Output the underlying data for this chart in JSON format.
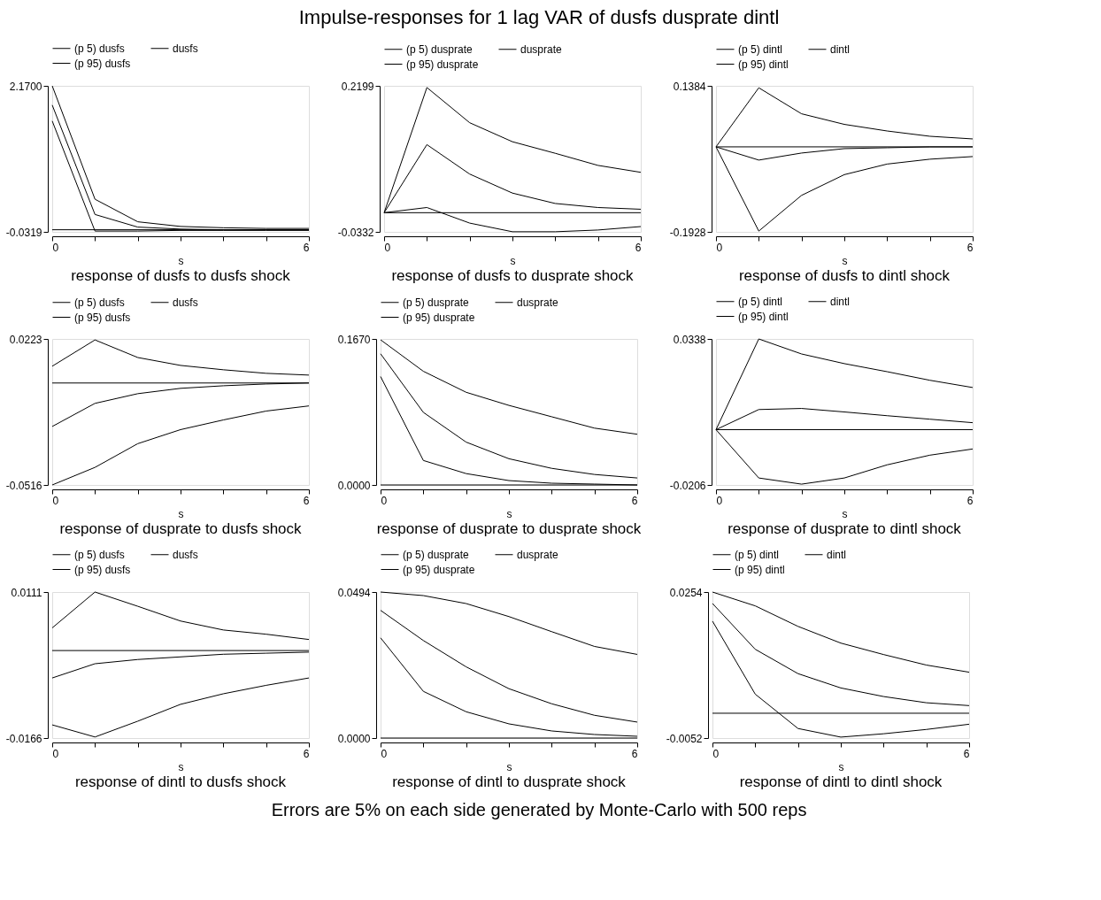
{
  "chart_data": [
    {
      "type": "other",
      "title": "Impulse-responses for 1 lag VAR of dusfs dusprate dintl"
    },
    {
      "type": "line",
      "title": "response of dusfs to dusfs shock",
      "xlabel": "s",
      "x": [
        0,
        1,
        2,
        3,
        4,
        5,
        6
      ],
      "xlim": [
        0,
        6
      ],
      "xticks": [
        0,
        {
          "value": 1,
          "label": null
        },
        {
          "value": 2,
          "label": null
        },
        {
          "value": 3,
          "label": null
        },
        {
          "value": 4,
          "label": null
        },
        {
          "value": 5,
          "label": null
        },
        6
      ],
      "ylim": [
        -0.0319,
        2.17
      ],
      "yticks": [
        {
          "value": -0.0319,
          "label": "-0.0319"
        },
        {
          "value": 2.17,
          "label": "2.1700"
        }
      ],
      "grid": false,
      "legend": "top",
      "ref_lines": [
        {
          "axis": "y",
          "value": 0
        }
      ],
      "series": [
        {
          "name": "(p 5) dusfs",
          "color": "#000000",
          "values": [
            1.64,
            -0.02,
            -0.02,
            -0.01,
            -0.01,
            -0.01,
            -0.01
          ]
        },
        {
          "name": "dusfs",
          "color": "#000000",
          "values": [
            1.88,
            0.23,
            0.04,
            0.01,
            0,
            0,
            0
          ]
        },
        {
          "name": "(p 95) dusfs",
          "color": "#000000",
          "values": [
            2.17,
            0.46,
            0.12,
            0.05,
            0.03,
            0.02,
            0.02
          ]
        }
      ]
    },
    {
      "type": "line",
      "title": "response of dusfs to dusprate shock",
      "xlabel": "s",
      "x": [
        0,
        1,
        2,
        3,
        4,
        5,
        6
      ],
      "xlim": [
        0,
        6
      ],
      "xticks": [
        0,
        {
          "value": 1,
          "label": null
        },
        {
          "value": 2,
          "label": null
        },
        {
          "value": 3,
          "label": null
        },
        {
          "value": 4,
          "label": null
        },
        {
          "value": 5,
          "label": null
        },
        6
      ],
      "ylim": [
        -0.0332,
        0.2199
      ],
      "yticks": [
        {
          "value": -0.0332,
          "label": "-0.0332"
        },
        {
          "value": 0.2199,
          "label": "0.2199"
        }
      ],
      "grid": false,
      "legend": "top",
      "ref_lines": [
        {
          "axis": "y",
          "value": 0
        }
      ],
      "series": [
        {
          "name": "(p 5) dusprate",
          "color": "#000000",
          "values": [
            0,
            0.009,
            -0.018,
            -0.033,
            -0.033,
            -0.03,
            -0.024
          ]
        },
        {
          "name": "dusprate",
          "color": "#000000",
          "values": [
            0,
            0.118,
            0.067,
            0.034,
            0.016,
            0.009,
            0.006
          ]
        },
        {
          "name": "(p 95) dusprate",
          "color": "#000000",
          "values": [
            0,
            0.217,
            0.156,
            0.123,
            0.103,
            0.082,
            0.07
          ]
        }
      ]
    },
    {
      "type": "line",
      "title": "response of dusfs to dintl shock",
      "xlabel": "s",
      "x": [
        0,
        1,
        2,
        3,
        4,
        5,
        6
      ],
      "xlim": [
        0,
        6
      ],
      "xticks": [
        0,
        {
          "value": 1,
          "label": null
        },
        {
          "value": 2,
          "label": null
        },
        {
          "value": 3,
          "label": null
        },
        {
          "value": 4,
          "label": null
        },
        {
          "value": 5,
          "label": null
        },
        6
      ],
      "ylim": [
        -0.1928,
        0.1384
      ],
      "yticks": [
        {
          "value": -0.1928,
          "label": "-0.1928"
        },
        {
          "value": 0.1384,
          "label": "0.1384"
        }
      ],
      "grid": false,
      "legend": "top",
      "ref_lines": [
        {
          "axis": "y",
          "value": 0
        }
      ],
      "series": [
        {
          "name": "(p 5) dintl",
          "color": "#000000",
          "values": [
            0,
            -0.191,
            -0.11,
            -0.063,
            -0.039,
            -0.028,
            -0.022
          ]
        },
        {
          "name": "dintl",
          "color": "#000000",
          "values": [
            0,
            -0.03,
            -0.014,
            -0.004,
            -0.002,
            0,
            0
          ]
        },
        {
          "name": "(p 95) dintl",
          "color": "#000000",
          "values": [
            0,
            0.134,
            0.075,
            0.051,
            0.036,
            0.024,
            0.018
          ]
        }
      ]
    },
    {
      "type": "line",
      "title": "response of dusprate to dusfs shock",
      "xlabel": "s",
      "x": [
        0,
        1,
        2,
        3,
        4,
        5,
        6
      ],
      "xlim": [
        0,
        6
      ],
      "xticks": [
        0,
        {
          "value": 1,
          "label": null
        },
        {
          "value": 2,
          "label": null
        },
        {
          "value": 3,
          "label": null
        },
        {
          "value": 4,
          "label": null
        },
        {
          "value": 5,
          "label": null
        },
        6
      ],
      "ylim": [
        -0.0516,
        0.0223
      ],
      "yticks": [
        {
          "value": -0.0516,
          "label": "-0.0516"
        },
        {
          "value": 0.0223,
          "label": "0.0223"
        }
      ],
      "grid": false,
      "legend": "top",
      "ref_lines": [
        {
          "axis": "y",
          "value": 0
        }
      ],
      "series": [
        {
          "name": "(p 5) dusfs",
          "color": "#000000",
          "values": [
            -0.0516,
            -0.0427,
            -0.0307,
            -0.0236,
            -0.0187,
            -0.0142,
            -0.0116
          ]
        },
        {
          "name": "dusfs",
          "color": "#000000",
          "values": [
            -0.022,
            -0.0103,
            -0.0054,
            -0.0027,
            -0.0014,
            -0.0005,
            0
          ]
        },
        {
          "name": "(p 95) dusfs",
          "color": "#000000",
          "values": [
            0.0085,
            0.0218,
            0.0129,
            0.0089,
            0.0067,
            0.0049,
            0.004
          ]
        }
      ]
    },
    {
      "type": "line",
      "title": "response of dusprate to dusprate shock",
      "xlabel": "s",
      "x": [
        0,
        1,
        2,
        3,
        4,
        5,
        6
      ],
      "xlim": [
        0,
        6
      ],
      "xticks": [
        0,
        {
          "value": 1,
          "label": null
        },
        {
          "value": 2,
          "label": null
        },
        {
          "value": 3,
          "label": null
        },
        {
          "value": 4,
          "label": null
        },
        {
          "value": 5,
          "label": null
        },
        6
      ],
      "ylim": [
        0,
        0.167
      ],
      "yticks": [
        {
          "value": 0,
          "label": "0.0000"
        },
        {
          "value": 0.167,
          "label": "0.1670"
        }
      ],
      "grid": false,
      "legend": "top",
      "ref_lines": [
        {
          "axis": "y",
          "value": 0
        }
      ],
      "series": [
        {
          "name": "(p 5) dusprate",
          "color": "#000000",
          "values": [
            0.124,
            0.028,
            0.013,
            0.005,
            0.002,
            0.001,
            0
          ]
        },
        {
          "name": "dusprate",
          "color": "#000000",
          "values": [
            0.15,
            0.083,
            0.049,
            0.03,
            0.019,
            0.012,
            0.008
          ]
        },
        {
          "name": "(p 95) dusprate",
          "color": "#000000",
          "values": [
            0.166,
            0.13,
            0.106,
            0.091,
            0.078,
            0.065,
            0.058
          ]
        }
      ]
    },
    {
      "type": "line",
      "title": "response of dusprate to dintl shock",
      "xlabel": "s",
      "x": [
        0,
        1,
        2,
        3,
        4,
        5,
        6
      ],
      "xlim": [
        0,
        6
      ],
      "xticks": [
        0,
        {
          "value": 1,
          "label": null
        },
        {
          "value": 2,
          "label": null
        },
        {
          "value": 3,
          "label": null
        },
        {
          "value": 4,
          "label": null
        },
        {
          "value": 5,
          "label": null
        },
        6
      ],
      "ylim": [
        -0.0206,
        0.0338
      ],
      "yticks": [
        {
          "value": -0.0206,
          "label": "-0.0206"
        },
        {
          "value": 0.0338,
          "label": "0.0338"
        }
      ],
      "grid": false,
      "legend": "top",
      "ref_lines": [
        {
          "axis": "y",
          "value": 0
        }
      ],
      "series": [
        {
          "name": "(p 5) dintl",
          "color": "#000000",
          "values": [
            0,
            -0.018,
            -0.0203,
            -0.018,
            -0.0131,
            -0.0095,
            -0.0072
          ]
        },
        {
          "name": "dintl",
          "color": "#000000",
          "values": [
            0,
            0.0075,
            0.0079,
            0.0066,
            0.0052,
            0.0039,
            0.0026
          ]
        },
        {
          "name": "(p 95) dintl",
          "color": "#000000",
          "values": [
            0,
            0.0338,
            0.0282,
            0.0246,
            0.0216,
            0.0184,
            0.0157
          ]
        }
      ]
    },
    {
      "type": "line",
      "title": "response of dintl to dusfs shock",
      "xlabel": "s",
      "x": [
        0,
        1,
        2,
        3,
        4,
        5,
        6
      ],
      "xlim": [
        0,
        6
      ],
      "xticks": [
        0,
        {
          "value": 1,
          "label": null
        },
        {
          "value": 2,
          "label": null
        },
        {
          "value": 3,
          "label": null
        },
        {
          "value": 4,
          "label": null
        },
        {
          "value": 5,
          "label": null
        },
        6
      ],
      "ylim": [
        -0.0166,
        0.0111
      ],
      "yticks": [
        {
          "value": -0.0166,
          "label": "-0.0166"
        },
        {
          "value": 0.0111,
          "label": "0.0111"
        }
      ],
      "grid": false,
      "legend": "top",
      "ref_lines": [
        {
          "axis": "y",
          "value": 0
        }
      ],
      "series": [
        {
          "name": "(p 5) dusfs",
          "color": "#000000",
          "values": [
            -0.0141,
            -0.0164,
            -0.0134,
            -0.0102,
            -0.0082,
            -0.0066,
            -0.0052
          ]
        },
        {
          "name": "dusfs",
          "color": "#000000",
          "values": [
            -0.0052,
            -0.0025,
            -0.0017,
            -0.0012,
            -0.0007,
            -0.0005,
            -0.0003
          ]
        },
        {
          "name": "(p 95) dusfs",
          "color": "#000000",
          "values": [
            0.0043,
            0.0111,
            0.0084,
            0.0056,
            0.0039,
            0.0031,
            0.0021
          ]
        }
      ]
    },
    {
      "type": "line",
      "title": "response of dintl to dusprate shock",
      "xlabel": "s",
      "x": [
        0,
        1,
        2,
        3,
        4,
        5,
        6
      ],
      "xlim": [
        0,
        6
      ],
      "xticks": [
        0,
        {
          "value": 1,
          "label": null
        },
        {
          "value": 2,
          "label": null
        },
        {
          "value": 3,
          "label": null
        },
        {
          "value": 4,
          "label": null
        },
        {
          "value": 5,
          "label": null
        },
        6
      ],
      "ylim": [
        0,
        0.0494
      ],
      "yticks": [
        {
          "value": 0,
          "label": "0.0000"
        },
        {
          "value": 0.0494,
          "label": "0.0494"
        }
      ],
      "grid": false,
      "legend": "top",
      "ref_lines": [
        {
          "axis": "y",
          "value": 0
        }
      ],
      "series": [
        {
          "name": "(p 5) dusprate",
          "color": "#000000",
          "values": [
            0.0339,
            0.0158,
            0.0089,
            0.0048,
            0.0024,
            0.0012,
            0.0006
          ]
        },
        {
          "name": "dusprate",
          "color": "#000000",
          "values": [
            0.0432,
            0.033,
            0.0241,
            0.0167,
            0.0116,
            0.0077,
            0.0054
          ]
        },
        {
          "name": "(p 95) dusprate",
          "color": "#000000",
          "values": [
            0.0494,
            0.0482,
            0.0455,
            0.0411,
            0.036,
            0.031,
            0.0283
          ]
        }
      ]
    },
    {
      "type": "line",
      "title": "response of dintl to dintl shock",
      "xlabel": "s",
      "x": [
        0,
        1,
        2,
        3,
        4,
        5,
        6
      ],
      "xlim": [
        0,
        6
      ],
      "xticks": [
        0,
        {
          "value": 1,
          "label": null
        },
        {
          "value": 2,
          "label": null
        },
        {
          "value": 3,
          "label": null
        },
        {
          "value": 4,
          "label": null
        },
        {
          "value": 5,
          "label": null
        },
        6
      ],
      "ylim": [
        -0.0052,
        0.0254
      ],
      "yticks": [
        {
          "value": -0.0052,
          "label": "-0.0052"
        },
        {
          "value": 0.0254,
          "label": "0.0254"
        }
      ],
      "grid": false,
      "legend": "top",
      "ref_lines": [
        {
          "axis": "y",
          "value": 0
        }
      ],
      "series": [
        {
          "name": "(p 5) dintl",
          "color": "#000000",
          "values": [
            0.0193,
            0.004,
            -0.0032,
            -0.005,
            -0.0043,
            -0.0034,
            -0.0023
          ]
        },
        {
          "name": "dintl",
          "color": "#000000",
          "values": [
            0.023,
            0.0134,
            0.0083,
            0.0053,
            0.0035,
            0.0022,
            0.0016
          ]
        },
        {
          "name": "(p 95) dintl",
          "color": "#000000",
          "values": [
            0.0254,
            0.0225,
            0.0182,
            0.0147,
            0.0123,
            0.0101,
            0.0086
          ]
        }
      ]
    },
    {
      "type": "other",
      "annotations": [
        "Errors are 5% on each side generated by Monte-Carlo with 500 reps"
      ]
    }
  ]
}
